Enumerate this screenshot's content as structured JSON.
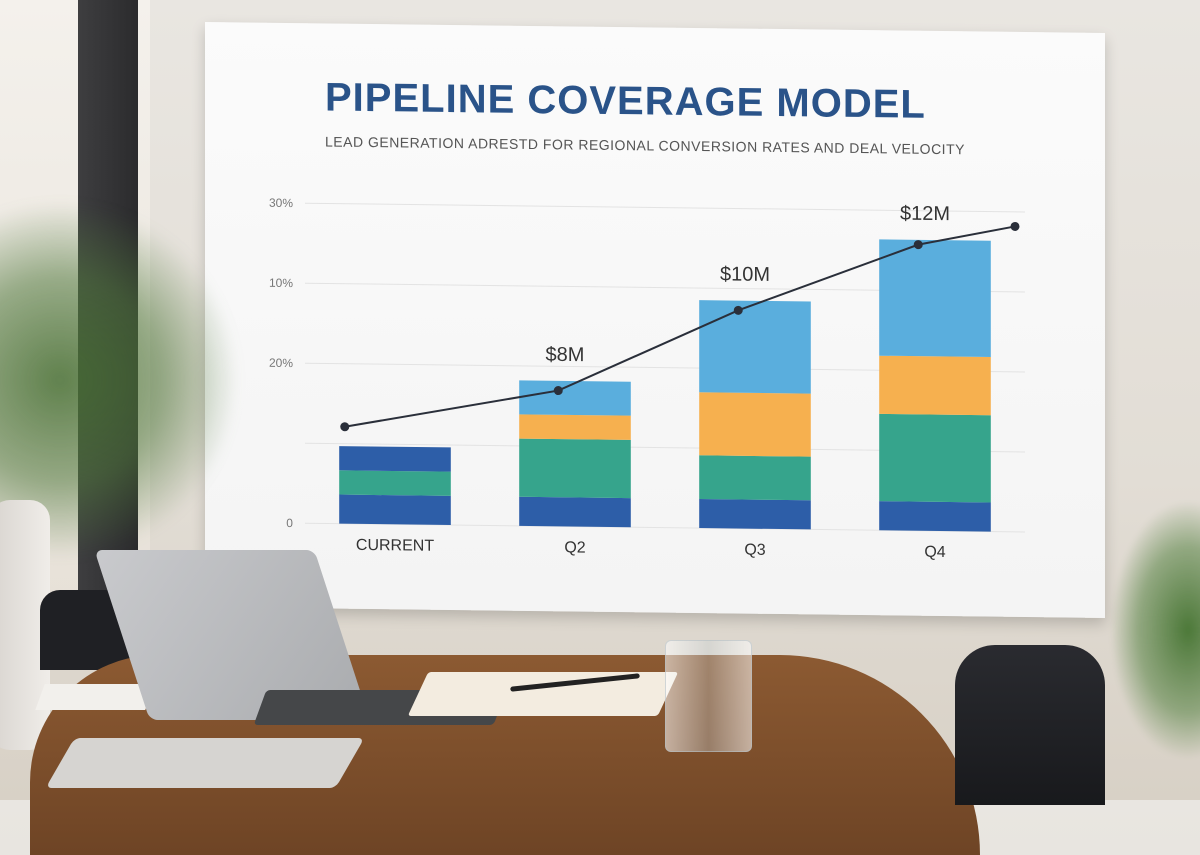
{
  "chart_data": {
    "type": "bar",
    "title": "PIPELINE COVERAGE MODEL",
    "subtitle": "LEAD GENERATION ADRESTD FOR REGIONAL CONVERSION RATES AND DEAL VELOCITY",
    "categories": [
      "CURRENT",
      "Q2",
      "Q3",
      "Q4"
    ],
    "y_tick_labels": [
      "0",
      "",
      "20%",
      "10%",
      "30%"
    ],
    "stacks": [
      {
        "color": "#2d5ea8",
        "values": [
          3,
          3,
          3,
          3
        ]
      },
      {
        "color": "#36a48c",
        "values": [
          2.5,
          6,
          4.5,
          9
        ]
      },
      {
        "color": "#2d5ea8",
        "values": [
          2.5,
          0,
          0,
          0
        ]
      },
      {
        "color": "#f6b04f",
        "values": [
          0,
          2.5,
          6.5,
          6
        ]
      },
      {
        "color": "#5aaedd",
        "values": [
          0,
          3.5,
          9.5,
          12
        ]
      }
    ],
    "bar_labels": [
      "",
      "$8M",
      "$10M",
      "$12M"
    ],
    "trend_line": {
      "color": "#2a2f3a",
      "values": [
        10,
        14,
        22.5,
        29.5
      ],
      "end_value": 31.5
    },
    "ylim": [
      0,
      33
    ],
    "grid": true,
    "legend": "none"
  }
}
